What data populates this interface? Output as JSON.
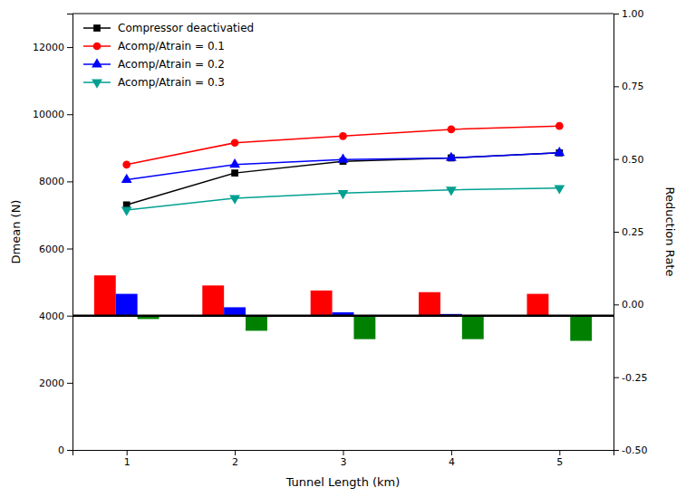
{
  "chart_data": {
    "type": "bar",
    "xlabel": "Tunnel Length (km)",
    "ylabel": "Dmean (N)",
    "y2label": "Reduction Rate",
    "x": [
      1,
      2,
      3,
      4,
      5
    ],
    "xlim": [
      0.5,
      5.5
    ],
    "xticks": [
      1,
      2,
      3,
      4,
      5
    ],
    "ylim": [
      0,
      13000
    ],
    "yticks": [
      0,
      2000,
      4000,
      6000,
      8000,
      10000,
      12000
    ],
    "y2lim": [
      -0.5,
      1.0
    ],
    "y2ticks": [
      {
        "value": -0.5,
        "label": "-0.50"
      },
      {
        "value": -0.25,
        "label": "-0.25"
      },
      {
        "value": 0,
        "label": "0.00"
      },
      {
        "value": 0.25,
        "label": "0.25"
      },
      {
        "value": 0.5,
        "label": "0.50"
      },
      {
        "value": 0.75,
        "label": "0.75"
      },
      {
        "value": 1.0,
        "label": "1.00"
      }
    ],
    "baseline": 4000,
    "grid": false,
    "legend": "upper left",
    "series": [
      {
        "type": "bar",
        "color": "#FF0000",
        "values": [
          5200,
          4900,
          4750,
          4700,
          4650
        ]
      },
      {
        "type": "bar",
        "color": "#0000FF",
        "values": [
          4650,
          4250,
          4100,
          4050,
          4000
        ]
      },
      {
        "type": "bar",
        "color": "#008000",
        "values": [
          3900,
          3550,
          3300,
          3300,
          3250
        ]
      },
      {
        "type": "line",
        "name": "Compressor deactivatied",
        "color": "#000000",
        "marker": "square",
        "values": [
          7300,
          8250,
          8600,
          8700,
          8850
        ]
      },
      {
        "type": "line",
        "name": "Acomp/Atrain = 0.1",
        "color": "#FF0000",
        "marker": "circle",
        "values": [
          8500,
          9150,
          9350,
          9550,
          9650
        ]
      },
      {
        "type": "line",
        "name": "Acomp/Atrain = 0.2",
        "color": "#0000FF",
        "marker": "triangle-up",
        "values": [
          8050,
          8500,
          8650,
          8700,
          8850
        ]
      },
      {
        "type": "line",
        "name": "Acomp/Atrain = 0.3",
        "color": "#00A090",
        "marker": "triangle-down",
        "values": [
          7150,
          7500,
          7650,
          7750,
          7800
        ]
      }
    ]
  }
}
